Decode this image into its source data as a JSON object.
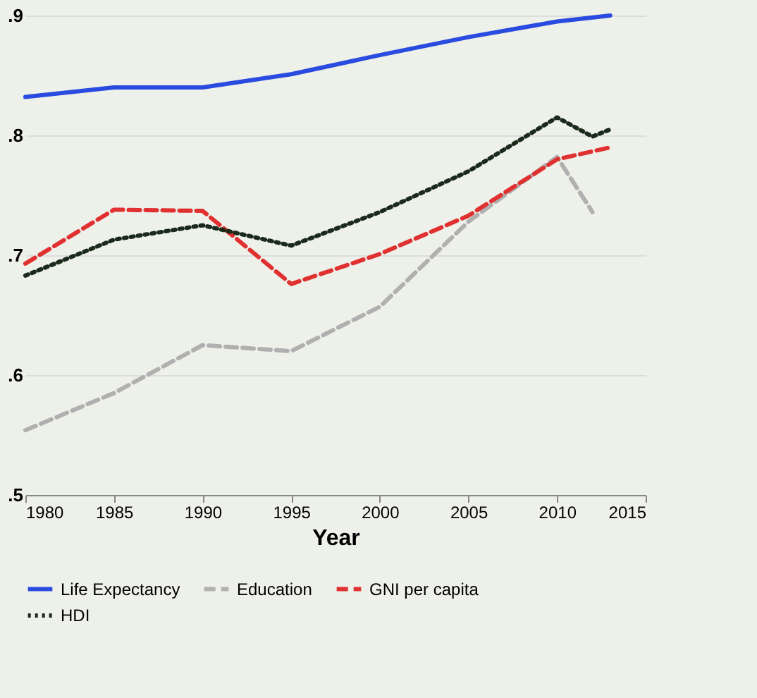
{
  "chart_data": {
    "type": "line",
    "xlabel": "Year",
    "x": [
      1980,
      1985,
      1990,
      1995,
      2000,
      2005,
      2010,
      2013
    ],
    "series": [
      {
        "name": "Life Expectancy",
        "color": "#2a4be0",
        "line_style": "solid",
        "values": [
          0.832,
          0.84,
          0.84,
          0.851,
          0.867,
          0.882,
          0.895,
          0.9
        ]
      },
      {
        "name": "Education",
        "color": "#b0b0b0",
        "line_style": "dashed",
        "x": [
          1980,
          1985,
          1990,
          1995,
          2000,
          2005,
          2010,
          2012
        ],
        "values": [
          0.554,
          0.585,
          0.625,
          0.62,
          0.657,
          0.728,
          0.782,
          0.736
        ]
      },
      {
        "name": "GNI per capita",
        "color": "#e03030",
        "line_style": "dashed",
        "values": [
          0.693,
          0.738,
          0.737,
          0.676,
          0.701,
          0.733,
          0.78,
          0.79
        ]
      },
      {
        "name": "HDI",
        "color": "#1a2a1a",
        "line_style": "dotted",
        "x": [
          1980,
          1985,
          1990,
          1995,
          2000,
          2005,
          2010,
          2012,
          2013
        ],
        "values": [
          0.683,
          0.713,
          0.725,
          0.708,
          0.736,
          0.77,
          0.815,
          0.799,
          0.805
        ]
      }
    ],
    "xlim": [
      1980,
      2015
    ],
    "xticks": [
      1980,
      1985,
      1990,
      1995,
      2000,
      2005,
      2010,
      2015
    ],
    "ylim": [
      0.5,
      0.9
    ],
    "yticks": [
      {
        "value": 0.5,
        "label": ".5"
      },
      {
        "value": 0.6,
        "label": ".6"
      },
      {
        "value": 0.7,
        "label": ".7"
      },
      {
        "value": 0.8,
        "label": ".8"
      },
      {
        "value": 0.9,
        "label": ".9"
      }
    ],
    "grid": "y",
    "legend": "bottom",
    "marker": "none"
  }
}
